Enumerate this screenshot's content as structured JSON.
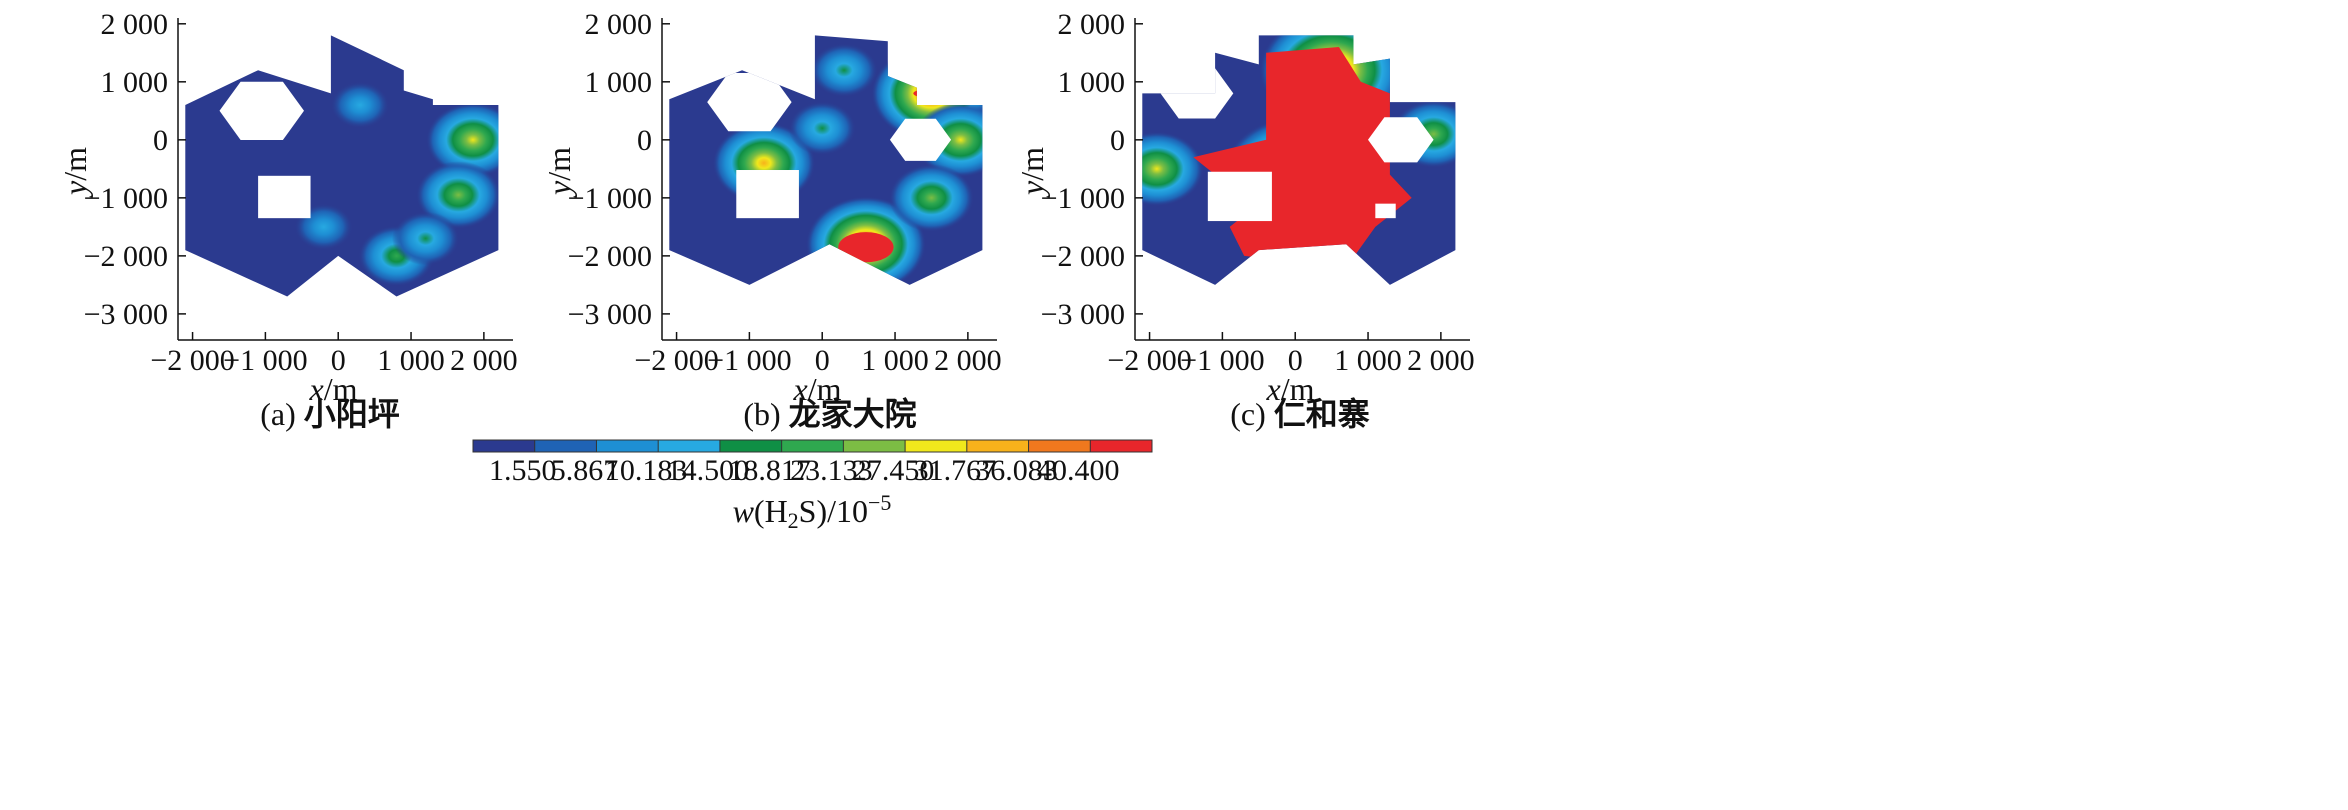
{
  "chart_data": [
    {
      "type": "heatmap",
      "panel": "a",
      "caption_letter": "(a)",
      "caption_name": "小阳坪",
      "xlabel": {
        "italic": "x",
        "rest": "/m"
      },
      "ylabel": {
        "italic": "y",
        "rest": "/m"
      },
      "xticks": [
        -2000,
        -1000,
        0,
        1000,
        2000
      ],
      "xtick_labels": [
        "−2 000",
        "−1 000",
        "0",
        "1 000",
        "2 000"
      ],
      "yticks": [
        2000,
        1000,
        0,
        -1000,
        -2000,
        -3000
      ],
      "ytick_labels": [
        "2 000",
        "1 000",
        "0",
        "−1 000",
        "−2 000",
        "−3 000"
      ],
      "xlim": [
        -2200,
        2400
      ],
      "ylim": [
        -3450,
        2100
      ],
      "hot_spots": [
        {
          "x": 1850,
          "y": 0,
          "level": 7
        },
        {
          "x": 1650,
          "y": -950,
          "level": 6
        },
        {
          "x": 800,
          "y": -2000,
          "level": 5
        },
        {
          "x": 1200,
          "y": -1700,
          "level": 4
        },
        {
          "x": 300,
          "y": 600,
          "level": 3
        },
        {
          "x": -200,
          "y": -1500,
          "level": 3
        }
      ]
    },
    {
      "type": "heatmap",
      "panel": "b",
      "caption_letter": "(b)",
      "caption_name": "龙家大院",
      "xlabel": {
        "italic": "x",
        "rest": "/m"
      },
      "ylabel": {
        "italic": "y",
        "rest": "/m"
      },
      "xticks": [
        -2000,
        -1000,
        0,
        1000,
        2000
      ],
      "xtick_labels": [
        "−2 000",
        "−1 000",
        "0",
        "1 000",
        "2 000"
      ],
      "yticks": [
        2000,
        1000,
        0,
        -1000,
        -2000,
        -3000
      ],
      "ytick_labels": [
        "2 000",
        "1 000",
        "0",
        "−1 000",
        "−2 000",
        "−3 000"
      ],
      "xlim": [
        -2200,
        2400
      ],
      "ylim": [
        -3450,
        2100
      ],
      "hot_spots": [
        {
          "x": 600,
          "y": -1800,
          "level": 10
        },
        {
          "x": 1500,
          "y": 800,
          "level": 10
        },
        {
          "x": -800,
          "y": -400,
          "level": 8
        },
        {
          "x": 1900,
          "y": 0,
          "level": 7
        },
        {
          "x": 1500,
          "y": -1000,
          "level": 6
        },
        {
          "x": 0,
          "y": 200,
          "level": 4
        },
        {
          "x": 300,
          "y": 1200,
          "level": 4
        }
      ]
    },
    {
      "type": "heatmap",
      "panel": "c",
      "caption_letter": "(c)",
      "caption_name": "仁和寨",
      "xlabel": {
        "italic": "x",
        "rest": "/m"
      },
      "ylabel": {
        "italic": "y",
        "rest": "/m"
      },
      "xticks": [
        -2000,
        -1000,
        0,
        1000,
        2000
      ],
      "xtick_labels": [
        "−2 000",
        "−1 000",
        "0",
        "1 000",
        "2 000"
      ],
      "yticks": [
        2000,
        1000,
        0,
        -1000,
        -2000,
        -3000
      ],
      "ytick_labels": [
        "2 000",
        "1 000",
        "0",
        "−1 000",
        "−2 000",
        "−3 000"
      ],
      "xlim": [
        -2200,
        2400
      ],
      "ylim": [
        -3450,
        2100
      ],
      "hot_spots": [
        {
          "x": 0,
          "y": -600,
          "level": 10
        },
        {
          "x": 500,
          "y": 1200,
          "level": 10
        },
        {
          "x": -1900,
          "y": -500,
          "level": 7
        },
        {
          "x": 1900,
          "y": 100,
          "level": 6
        }
      ]
    }
  ],
  "colorbar": {
    "title": {
      "italic": "w",
      "rest": "(H",
      "sub": "2",
      "rest2": "S)/10",
      "sup": "−5"
    },
    "ticks": [
      "1.550",
      "5.867",
      "10.183",
      "14.500",
      "18.817",
      "23.133",
      "27.450",
      "31.767",
      "36.083",
      "40.400"
    ],
    "colors": [
      "#2b3a8f",
      "#1f63b5",
      "#1e8fd4",
      "#27a9e1",
      "#0f8f45",
      "#2fa84f",
      "#7cbd44",
      "#f0e81c",
      "#f7b21b",
      "#f0781e",
      "#e8262b"
    ]
  }
}
